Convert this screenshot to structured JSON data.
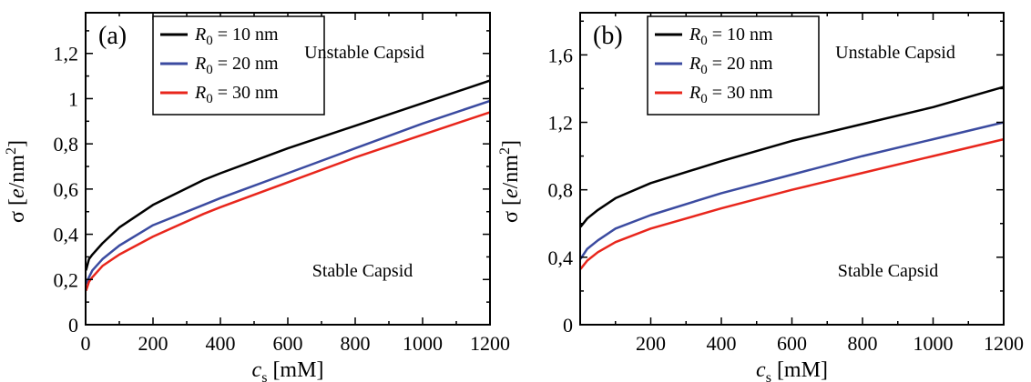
{
  "chart_data": [
    {
      "type": "line",
      "panel_label": "(a)",
      "xlabel": "c_s [mM]",
      "ylabel": "σ [e/nm²]",
      "xlim": [
        0,
        1200
      ],
      "ylim": [
        0,
        1.38
      ],
      "x_ticks": [
        0,
        200,
        400,
        600,
        800,
        1000,
        1200
      ],
      "y_ticks": [
        0,
        0.2,
        0.4,
        0.6,
        0.8,
        1,
        1.2
      ],
      "y_tick_labels": [
        "0",
        "0,2",
        "0,4",
        "0,6",
        "0,8",
        "1",
        "1,2"
      ],
      "x_tick_labels": [
        "0",
        "200",
        "400",
        "600",
        "800",
        "1000",
        "1200"
      ],
      "grid": false,
      "legend_position": "top-left",
      "annotations": [
        {
          "text": "Unstable Capsid",
          "position": "upper-right"
        },
        {
          "text": "Stable Capsid",
          "position": "lower-right"
        }
      ],
      "series": [
        {
          "name": "R0 = 10 nm",
          "color": "#000000",
          "x": [
            1,
            10,
            20,
            50,
            100,
            200,
            350,
            400,
            600,
            800,
            1000,
            1200
          ],
          "y": [
            0.24,
            0.29,
            0.31,
            0.36,
            0.43,
            0.53,
            0.64,
            0.67,
            0.78,
            0.88,
            0.98,
            1.08
          ]
        },
        {
          "name": "R0 = 20 nm",
          "color": "#3b4ba0",
          "x": [
            1,
            10,
            20,
            50,
            100,
            200,
            350,
            400,
            600,
            800,
            1000,
            1200
          ],
          "y": [
            0.18,
            0.21,
            0.24,
            0.29,
            0.35,
            0.44,
            0.53,
            0.56,
            0.67,
            0.78,
            0.89,
            0.99
          ]
        },
        {
          "name": "R0 = 30 nm",
          "color": "#e8261c",
          "x": [
            1,
            10,
            20,
            50,
            100,
            200,
            350,
            400,
            600,
            800,
            1000,
            1200
          ],
          "y": [
            0.15,
            0.19,
            0.21,
            0.26,
            0.31,
            0.39,
            0.49,
            0.52,
            0.63,
            0.74,
            0.84,
            0.94
          ]
        }
      ]
    },
    {
      "type": "line",
      "panel_label": "(b)",
      "xlabel": "c_s [mM]",
      "ylabel": "σ [e/nm²]",
      "xlim": [
        0,
        1200
      ],
      "ylim": [
        0,
        1.85
      ],
      "x_ticks": [
        200,
        400,
        600,
        800,
        1000,
        1200
      ],
      "y_ticks": [
        0,
        0.4,
        0.8,
        1.2,
        1.6
      ],
      "y_tick_labels": [
        "0",
        "0,4",
        "0,8",
        "1,2",
        "1,6"
      ],
      "x_tick_labels": [
        "200",
        "400",
        "600",
        "800",
        "1000",
        "1200"
      ],
      "grid": false,
      "legend_position": "top-left",
      "annotations": [
        {
          "text": "Unstable Capsid",
          "position": "upper-right"
        },
        {
          "text": "Stable Capsid",
          "position": "lower-right"
        }
      ],
      "series": [
        {
          "name": "R0 = 10 nm",
          "color": "#000000",
          "x": [
            1,
            20,
            50,
            100,
            200,
            400,
            600,
            800,
            1000,
            1200
          ],
          "y": [
            0.58,
            0.63,
            0.68,
            0.75,
            0.84,
            0.97,
            1.09,
            1.19,
            1.29,
            1.41
          ]
        },
        {
          "name": "R0 = 20 nm",
          "color": "#3b4ba0",
          "x": [
            1,
            20,
            50,
            100,
            200,
            400,
            600,
            800,
            1000,
            1200
          ],
          "y": [
            0.39,
            0.45,
            0.5,
            0.57,
            0.65,
            0.78,
            0.89,
            1.0,
            1.1,
            1.2
          ]
        },
        {
          "name": "R0 = 30 nm",
          "color": "#e8261c",
          "x": [
            1,
            20,
            50,
            100,
            200,
            400,
            600,
            800,
            1000,
            1200
          ],
          "y": [
            0.33,
            0.38,
            0.43,
            0.49,
            0.57,
            0.69,
            0.8,
            0.9,
            1.0,
            1.1
          ]
        }
      ]
    }
  ]
}
